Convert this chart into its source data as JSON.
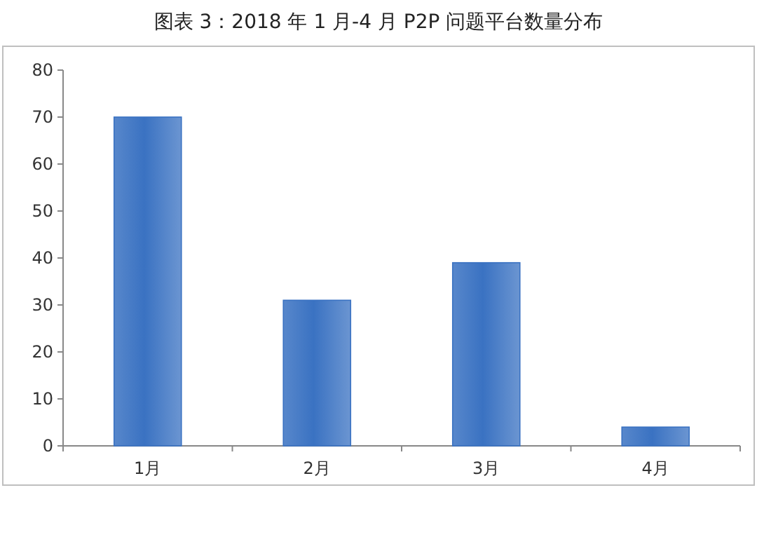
{
  "chart_data": {
    "type": "bar",
    "title": "图表 3：2018 年 1 月-4 月 P2P 问题平台数量分布",
    "categories": [
      "1月",
      "2月",
      "3月",
      "4月"
    ],
    "values": [
      70,
      31,
      39,
      4
    ],
    "color": "#3a72c2",
    "ylim": [
      0,
      80
    ],
    "yticks": [
      0,
      10,
      20,
      30,
      40,
      50,
      60,
      70,
      80
    ]
  }
}
